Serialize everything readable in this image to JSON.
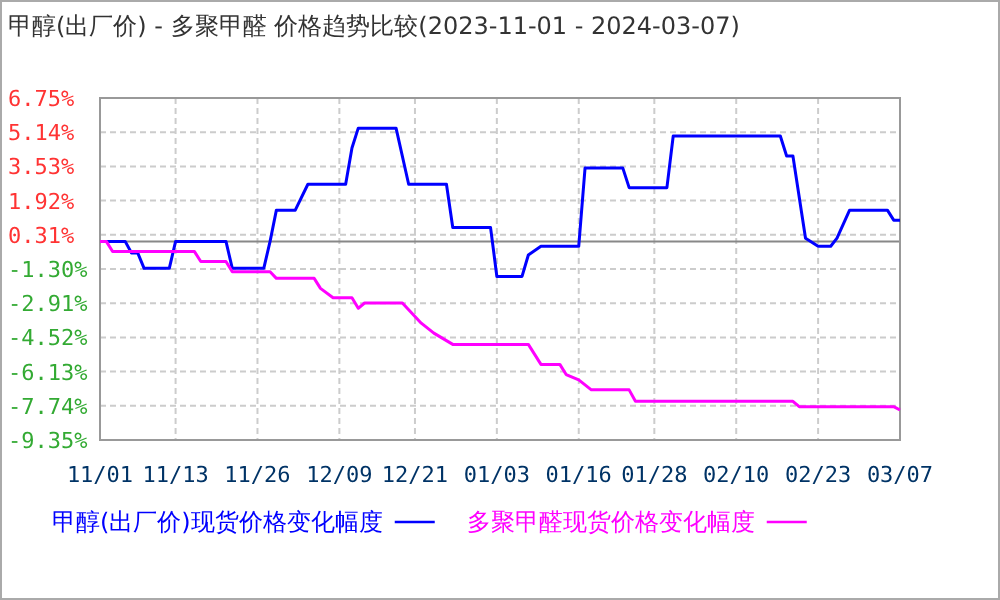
{
  "chart_data": {
    "type": "line",
    "title": "甲醇(出厂价) - 多聚甲醛 价格趋势比较(2023-11-01 - 2024-03-07)",
    "xlim": [
      "2023-11-01",
      "2024-03-07"
    ],
    "xticks": [
      {
        "value": "2023-11-01",
        "label": "11/01"
      },
      {
        "value": "2023-11-13",
        "label": "11/13"
      },
      {
        "value": "2023-11-26",
        "label": "11/26"
      },
      {
        "value": "2023-12-09",
        "label": "12/09"
      },
      {
        "value": "2023-12-21",
        "label": "12/21"
      },
      {
        "value": "2024-01-03",
        "label": "01/03"
      },
      {
        "value": "2024-01-16",
        "label": "01/16"
      },
      {
        "value": "2024-01-28",
        "label": "01/28"
      },
      {
        "value": "2024-02-10",
        "label": "02/10"
      },
      {
        "value": "2024-02-23",
        "label": "02/23"
      },
      {
        "value": "2024-03-07",
        "label": "03/07"
      }
    ],
    "ylim": [
      -9.35,
      6.75
    ],
    "yticks": [
      {
        "value": 6.75,
        "label": "6.75%"
      },
      {
        "value": 5.14,
        "label": "5.14%"
      },
      {
        "value": 3.53,
        "label": "3.53%"
      },
      {
        "value": 1.92,
        "label": "1.92%"
      },
      {
        "value": 0.31,
        "label": "0.31%"
      },
      {
        "value": -1.3,
        "label": "-1.30%"
      },
      {
        "value": -2.91,
        "label": "-2.91%"
      },
      {
        "value": -4.52,
        "label": "-4.52%"
      },
      {
        "value": -6.13,
        "label": "-6.13%"
      },
      {
        "value": -7.74,
        "label": "-7.74%"
      },
      {
        "value": -9.35,
        "label": "-9.35%"
      }
    ],
    "grid": true,
    "legend": "bottom",
    "marker": "none",
    "line_style": "solid",
    "ref_lines": [
      {
        "axis": "y",
        "value": 0,
        "label": null,
        "color": "#888888",
        "line_style": "solid"
      }
    ],
    "series": [
      {
        "name": "甲醇(出厂价)现货价格变化幅度",
        "color": "#0000ff",
        "x": [
          "2023-11-01",
          "2023-11-05",
          "2023-11-06",
          "2023-11-07",
          "2023-11-08",
          "2023-11-12",
          "2023-11-13",
          "2023-11-21",
          "2023-11-22",
          "2023-11-27",
          "2023-11-28",
          "2023-11-29",
          "2023-12-02",
          "2023-12-04",
          "2023-12-10",
          "2023-12-11",
          "2023-12-12",
          "2023-12-18",
          "2023-12-20",
          "2023-12-26",
          "2023-12-27",
          "2024-01-02",
          "2024-01-03",
          "2024-01-07",
          "2024-01-08",
          "2024-01-10",
          "2024-01-16",
          "2024-01-17",
          "2024-01-23",
          "2024-01-24",
          "2024-01-30",
          "2024-01-31",
          "2024-02-17",
          "2024-02-18",
          "2024-02-19",
          "2024-02-21",
          "2024-02-23",
          "2024-02-25",
          "2024-02-26",
          "2024-02-28",
          "2024-03-05",
          "2024-03-06",
          "2024-03-07"
        ],
        "values": [
          0,
          0,
          -0.55,
          -0.55,
          -1.27,
          -1.27,
          0,
          0,
          -1.27,
          -1.27,
          0,
          1.47,
          1.47,
          2.69,
          2.69,
          4.4,
          5.33,
          5.33,
          2.69,
          2.69,
          0.65,
          0.65,
          -1.65,
          -1.65,
          -0.64,
          -0.23,
          -0.23,
          3.45,
          3.45,
          2.53,
          2.53,
          4.96,
          4.96,
          4.02,
          4.02,
          0.15,
          -0.23,
          -0.23,
          0.15,
          1.47,
          1.47,
          1.0,
          1.0
        ]
      },
      {
        "name": "多聚甲醛现货价格变化幅度",
        "color": "#ff00ff",
        "x": [
          "2023-11-01",
          "2023-11-02",
          "2023-11-03",
          "2023-11-16",
          "2023-11-17",
          "2023-11-21",
          "2023-11-22",
          "2023-11-28",
          "2023-11-29",
          "2023-12-05",
          "2023-12-06",
          "2023-12-08",
          "2023-12-11",
          "2023-12-12",
          "2023-12-13",
          "2023-12-19",
          "2023-12-22",
          "2023-12-24",
          "2023-12-27",
          "2024-01-08",
          "2024-01-10",
          "2024-01-13",
          "2024-01-14",
          "2024-01-16",
          "2024-01-18",
          "2024-01-24",
          "2024-01-25",
          "2024-02-19",
          "2024-02-20",
          "2024-03-06",
          "2024-03-07"
        ],
        "values": [
          0,
          0,
          -0.48,
          -0.48,
          -0.95,
          -0.95,
          -1.43,
          -1.43,
          -1.74,
          -1.74,
          -2.21,
          -2.65,
          -2.65,
          -3.15,
          -2.9,
          -2.9,
          -3.85,
          -4.32,
          -4.85,
          -4.85,
          -5.79,
          -5.79,
          -6.27,
          -6.52,
          -6.99,
          -6.99,
          -7.53,
          -7.53,
          -7.78,
          -7.78,
          -7.94
        ]
      }
    ]
  }
}
